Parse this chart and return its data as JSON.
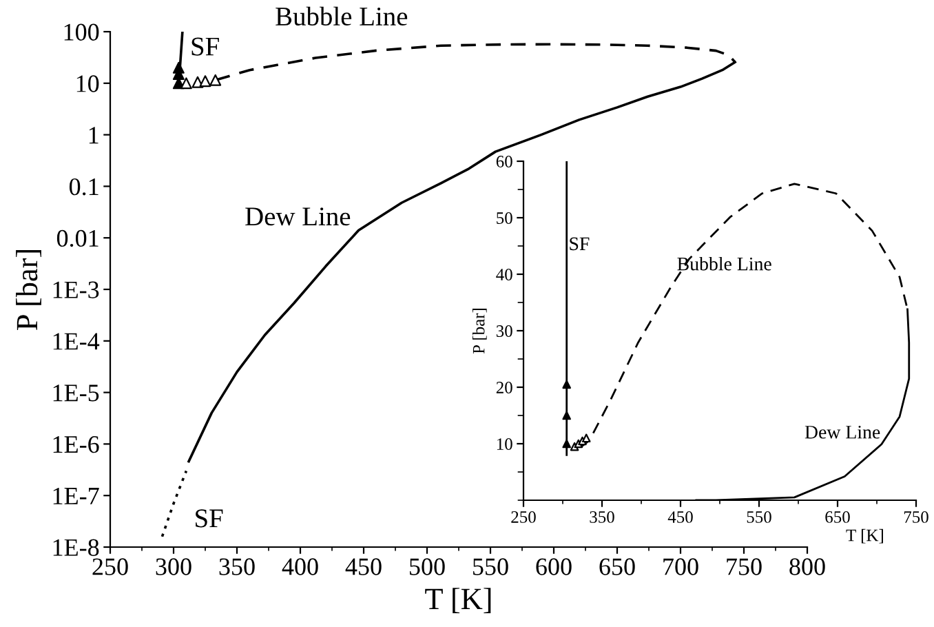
{
  "chart_data": [
    {
      "type": "line",
      "xlabel": "T [K]",
      "ylabel": "P [bar]",
      "log": "y",
      "xlim": [
        250,
        800
      ],
      "xticks": [
        250,
        300,
        350,
        400,
        450,
        500,
        550,
        600,
        650,
        700,
        750,
        800
      ],
      "ylim": [
        1e-08,
        100
      ],
      "yticks": [
        {
          "value": 1e-08,
          "label": "1E-8"
        },
        {
          "value": 1e-07,
          "label": "1E-7"
        },
        {
          "value": 1e-06,
          "label": "1E-6"
        },
        {
          "value": 1e-05,
          "label": "1E-5"
        },
        {
          "value": 0.0001,
          "label": "1E-4"
        },
        {
          "value": 0.001,
          "label": "1E-3"
        },
        0.01,
        0.1,
        1,
        10,
        100
      ],
      "grid": false,
      "legend": false,
      "series": [
        {
          "name": "Bubble Line",
          "line_style": "dashed",
          "marker": "none",
          "color": "#000000",
          "x": [
            333,
            360,
            412,
            460,
            511,
            560,
            601,
            640,
            674,
            705,
            728,
            738,
            743
          ],
          "values": [
            11.5,
            18,
            31,
            43,
            53.7,
            56.5,
            57,
            56,
            53.7,
            49,
            42.7,
            35,
            25.7
          ]
        },
        {
          "name": "Dew Line",
          "line_style": "solid",
          "marker": "none",
          "color": "#000000",
          "x": [
            312,
            330,
            350,
            372,
            395,
            420,
            446,
            480,
            511,
            533,
            554,
            590,
            620,
            650,
            674,
            700,
            717,
            733,
            743
          ],
          "values": [
            4.6e-07,
            4e-06,
            2.5e-05,
            0.00013,
            0.00054,
            0.0028,
            0.014,
            0.048,
            0.115,
            0.22,
            0.47,
            1.0,
            1.95,
            3.4,
            5.5,
            8.5,
            12.3,
            18,
            25.7
          ]
        },
        {
          "name": "SF",
          "line_style": "dotted",
          "marker": "none",
          "color": "#000000",
          "x": [
            291,
            300,
            310
          ],
          "values": [
            1.6e-08,
            7e-08,
            3e-07
          ]
        },
        {
          "name": "SF",
          "line_style": "solid",
          "marker": "none",
          "color": "#000000",
          "x": [
            304,
            307
          ],
          "values": [
            8.5,
            100
          ]
        },
        {
          "type": "scatter",
          "marker": "triangle",
          "color": "#000000",
          "x": [
            304,
            304,
            304
          ],
          "values": [
            10,
            15,
            20
          ]
        },
        {
          "type": "scatter",
          "marker": "triangle",
          "color": "#ffffff",
          "x": [
            310,
            319,
            325,
            333
          ],
          "values": [
            10,
            10.5,
            11,
            11.5
          ]
        }
      ]
    },
    {
      "type": "line",
      "xlabel": "T [K]",
      "ylabel": "P [bar]",
      "xlim": [
        250,
        750
      ],
      "xticks": [
        250,
        350,
        450,
        550,
        650,
        750
      ],
      "ylim": [
        0,
        60
      ],
      "yticks": [
        10,
        20,
        30,
        40,
        50,
        60
      ],
      "grid": false,
      "legend": false,
      "series": [
        {
          "name": "Bubble Line",
          "line_style": "dashed",
          "marker": "none",
          "color": "#000000",
          "x": [
            323,
            334,
            360,
            396,
            438,
            461,
            513,
            554,
            595,
            648,
            694,
            729,
            739
          ],
          "values": [
            9.4,
            10.6,
            17.5,
            27.9,
            37.8,
            42.7,
            50.1,
            54.3,
            56.0,
            54.3,
            47.7,
            39.5,
            33.8
          ]
        },
        {
          "name": "Dew Line",
          "line_style": "solid",
          "marker": "none",
          "color": "#000000",
          "x": [
            739,
            741,
            741,
            729,
            706,
            659,
            595,
            495,
            470
          ],
          "values": [
            33.8,
            27.9,
            21.5,
            14.8,
            9.9,
            4.2,
            0.5,
            0,
            0
          ]
        },
        {
          "name": "SF",
          "line_style": "solid",
          "marker": "none",
          "color": "#000000",
          "x": [
            305,
            305
          ],
          "values": [
            8,
            60
          ]
        },
        {
          "type": "scatter",
          "marker": "triangle",
          "color": "#000000",
          "x": [
            305,
            305,
            305
          ],
          "values": [
            10,
            15,
            20.5
          ]
        },
        {
          "type": "scatter",
          "marker": "triangle",
          "color": "#ffffff",
          "x": [
            315,
            320,
            325,
            330
          ],
          "values": [
            9.5,
            10,
            10.5,
            11
          ]
        }
      ]
    }
  ]
}
